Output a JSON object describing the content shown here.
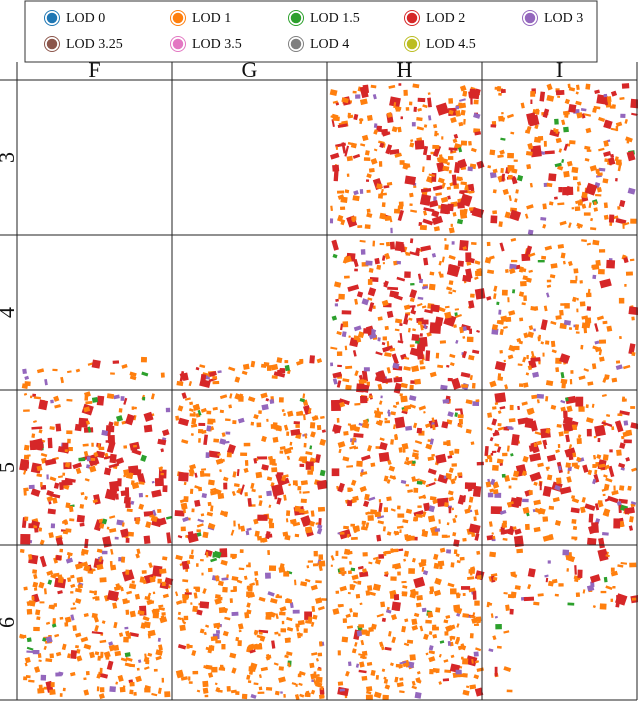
{
  "legend": [
    {
      "label": "LOD 0",
      "color": "#1f77b4"
    },
    {
      "label": "LOD 1",
      "color": "#ff7f0e"
    },
    {
      "label": "LOD 1.5",
      "color": "#2ca02c"
    },
    {
      "label": "LOD 2",
      "color": "#d62728"
    },
    {
      "label": "LOD 3",
      "color": "#9467bd"
    },
    {
      "label": "LOD 3.25",
      "color": "#8c564b"
    },
    {
      "label": "LOD 3.5",
      "color": "#e377c2"
    },
    {
      "label": "LOD 4",
      "color": "#7f7f7f"
    },
    {
      "label": "LOD 4.5",
      "color": "#bcbd22"
    }
  ],
  "columns": [
    "F",
    "G",
    "H",
    "I"
  ],
  "rows": [
    "3",
    "4",
    "5",
    "6"
  ]
}
